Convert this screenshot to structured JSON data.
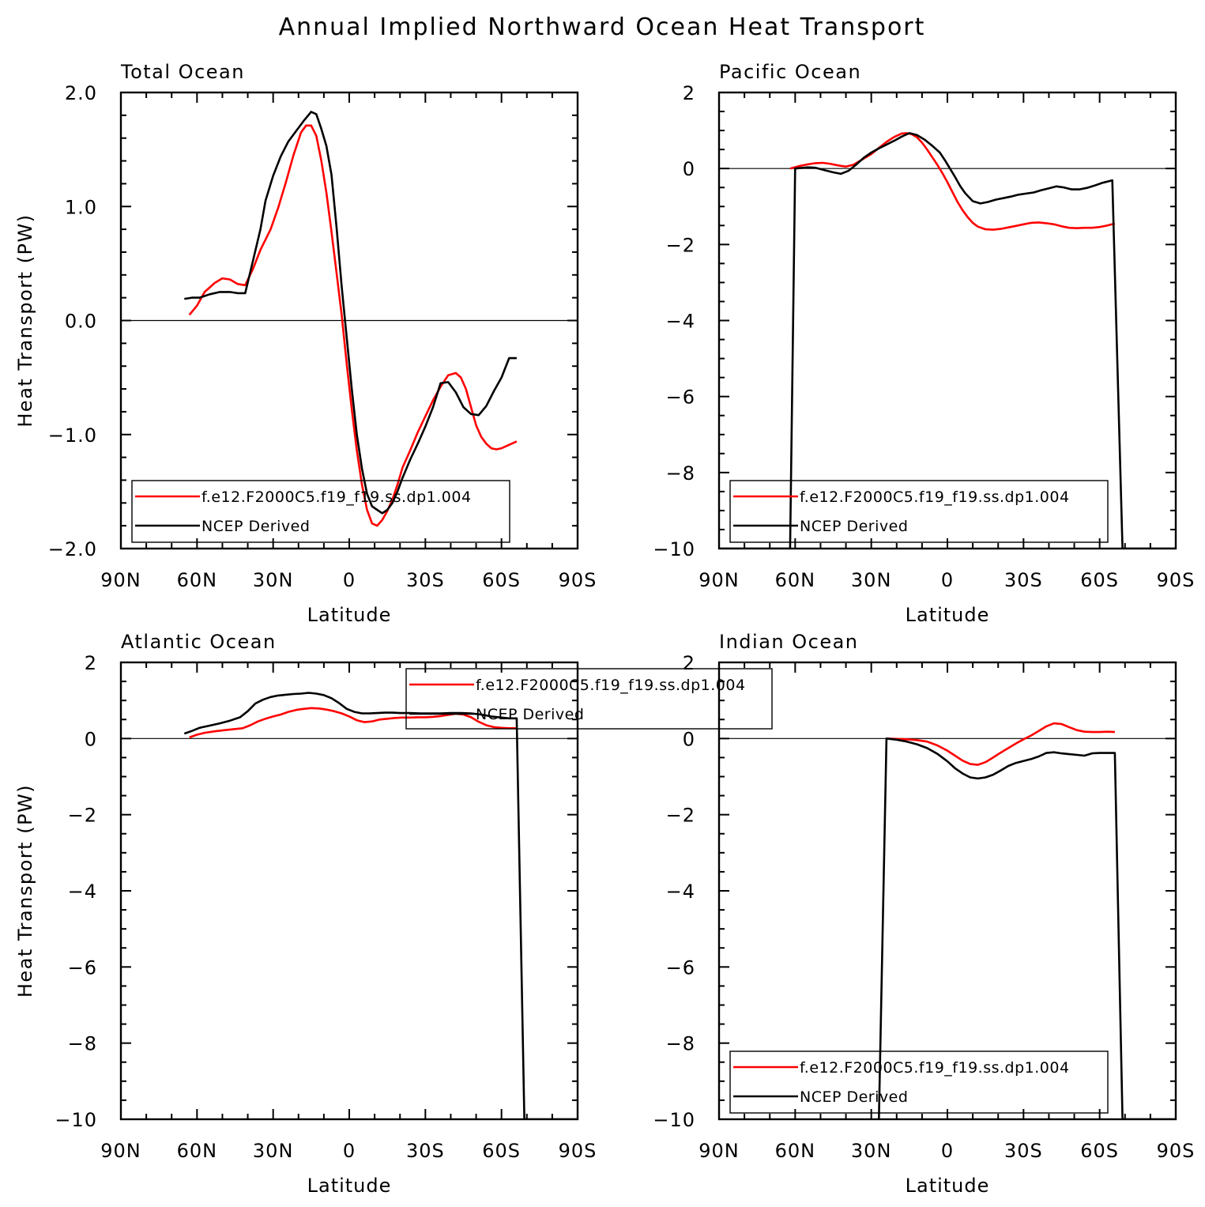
{
  "title": "Annual Implied Northward Ocean Heat Transport",
  "colors": {
    "model": "#ff0000",
    "obs": "#000000",
    "axis": "#000000"
  },
  "chart_data": [
    {
      "type": "line",
      "panel_title": "Total Ocean",
      "xlabel": "Latitude",
      "ylabel": "Heat Transport (PW)",
      "xlim": [
        90,
        -90
      ],
      "ylim": [
        -2,
        2
      ],
      "x_ticks": [
        90,
        60,
        30,
        0,
        -30,
        -60,
        -90
      ],
      "x_tick_labels": [
        "90N",
        "60N",
        "30N",
        "0",
        "30S",
        "60S",
        "90S"
      ],
      "y_ticks": [
        -2,
        -1,
        0,
        1,
        2
      ],
      "y_tick_labels": [
        "−2.0",
        "−1.0",
        "0.0",
        "1.0",
        "2.0"
      ],
      "legend_position": "lower-left",
      "legend_entries": [
        "f.e12.F2000C5.f19_f19.ss.dp1.004",
        "NCEP Derived"
      ],
      "series": [
        {
          "name": "f.e12.F2000C5.f19_f19.ss.dp1.004",
          "color": "#ff0000",
          "x": [
            63,
            60,
            57,
            53,
            50,
            47,
            44,
            41,
            38,
            35,
            31,
            28,
            25,
            22,
            19,
            17,
            15,
            13,
            11,
            9,
            7,
            5,
            3,
            1,
            -1,
            -3,
            -5,
            -7,
            -9,
            -11,
            -13,
            -15,
            -17,
            -19,
            -21,
            -24,
            -27,
            -30,
            -33,
            -36,
            -39,
            -42,
            -44,
            -46,
            -48,
            -50,
            -52,
            -54,
            -56,
            -58,
            -60,
            -62,
            -64,
            -66
          ],
          "y": [
            0.05,
            0.13,
            0.25,
            0.33,
            0.37,
            0.36,
            0.32,
            0.31,
            0.45,
            0.62,
            0.8,
            0.99,
            1.21,
            1.45,
            1.65,
            1.71,
            1.71,
            1.62,
            1.4,
            1.12,
            0.78,
            0.42,
            0.05,
            -0.38,
            -0.78,
            -1.14,
            -1.44,
            -1.66,
            -1.78,
            -1.8,
            -1.75,
            -1.67,
            -1.57,
            -1.44,
            -1.29,
            -1.14,
            -0.98,
            -0.84,
            -0.7,
            -0.58,
            -0.48,
            -0.46,
            -0.5,
            -0.6,
            -0.76,
            -0.92,
            -1.02,
            -1.08,
            -1.12,
            -1.13,
            -1.12,
            -1.1,
            -1.08,
            -1.06
          ]
        },
        {
          "name": "NCEP Derived",
          "color": "#000000",
          "x": [
            65,
            62,
            59,
            55,
            51,
            47,
            44,
            41,
            38,
            35,
            33,
            30,
            27,
            24,
            21,
            18,
            15,
            13,
            11,
            9,
            7,
            5,
            3,
            1,
            -1,
            -3,
            -5,
            -7,
            -9,
            -11,
            -13,
            -15,
            -17,
            -19,
            -21,
            -24,
            -27,
            -30,
            -33,
            -36,
            -39,
            -42,
            -45,
            -48,
            -51,
            -54,
            -57,
            -60,
            -63,
            -66
          ],
          "y": [
            0.19,
            0.2,
            0.2,
            0.23,
            0.25,
            0.25,
            0.24,
            0.24,
            0.52,
            0.8,
            1.05,
            1.27,
            1.44,
            1.57,
            1.66,
            1.75,
            1.83,
            1.81,
            1.68,
            1.53,
            1.28,
            0.82,
            0.3,
            -0.15,
            -0.6,
            -1.0,
            -1.3,
            -1.52,
            -1.63,
            -1.66,
            -1.69,
            -1.66,
            -1.6,
            -1.5,
            -1.38,
            -1.22,
            -1.08,
            -0.93,
            -0.76,
            -0.55,
            -0.54,
            -0.63,
            -0.76,
            -0.82,
            -0.83,
            -0.75,
            -0.62,
            -0.5,
            -0.33,
            -0.33
          ]
        }
      ]
    },
    {
      "type": "line",
      "panel_title": "Pacific Ocean",
      "xlabel": "Latitude",
      "ylabel": "",
      "xlim": [
        90,
        -90
      ],
      "ylim": [
        -10,
        2
      ],
      "x_ticks": [
        90,
        60,
        30,
        0,
        -30,
        -60,
        -90
      ],
      "x_tick_labels": [
        "90N",
        "60N",
        "30N",
        "0",
        "30S",
        "60S",
        "90S"
      ],
      "y_ticks": [
        -10,
        -8,
        -6,
        -4,
        -2,
        0,
        2
      ],
      "y_tick_labels": [
        "−10",
        "−8",
        "−6",
        "−4",
        "−2",
        "0",
        "2"
      ],
      "legend_position": "lower-left",
      "legend_entries": [
        "f.e12.F2000C5.f19_f19.ss.dp1.004",
        "NCEP Derived"
      ],
      "series": [
        {
          "name": "f.e12.F2000C5.f19_f19.ss.dp1.004",
          "color": "#ff0000",
          "x": [
            62,
            58,
            55,
            52,
            49,
            46,
            43,
            40,
            37,
            34,
            30,
            27,
            24,
            21,
            18,
            16,
            14,
            12,
            10,
            8,
            6,
            4,
            2,
            0,
            -2,
            -4,
            -6,
            -8,
            -10,
            -12,
            -15,
            -18,
            -21,
            -24,
            -27,
            -30,
            -33,
            -36,
            -39,
            -42,
            -45,
            -48,
            -51,
            -54,
            -57,
            -60,
            -63,
            -66
          ],
          "y": [
            0.0,
            0.07,
            0.11,
            0.14,
            0.15,
            0.12,
            0.08,
            0.05,
            0.1,
            0.22,
            0.38,
            0.54,
            0.7,
            0.83,
            0.92,
            0.93,
            0.9,
            0.82,
            0.68,
            0.5,
            0.3,
            0.1,
            -0.12,
            -0.36,
            -0.62,
            -0.88,
            -1.1,
            -1.28,
            -1.43,
            -1.53,
            -1.6,
            -1.61,
            -1.59,
            -1.55,
            -1.51,
            -1.47,
            -1.43,
            -1.42,
            -1.44,
            -1.47,
            -1.52,
            -1.56,
            -1.57,
            -1.56,
            -1.56,
            -1.54,
            -1.5,
            -1.45
          ]
        },
        {
          "name": "NCEP Derived",
          "color": "#000000",
          "x": [
            90,
            62,
            60,
            55,
            52,
            48,
            45,
            42,
            39,
            36,
            33,
            30,
            27,
            24,
            21,
            18,
            15,
            12,
            9,
            6,
            3,
            1,
            -1,
            -3,
            -5,
            -7,
            -10,
            -13,
            -16,
            -19,
            -22,
            -25,
            -28,
            -31,
            -34,
            -37,
            -40,
            -43,
            -46,
            -49,
            -52,
            -55,
            -58,
            -61,
            -65,
            -69,
            -90
          ],
          "y": [
            -10.0,
            -10.0,
            0.0,
            0.03,
            0.02,
            -0.05,
            -0.1,
            -0.14,
            -0.06,
            0.1,
            0.28,
            0.42,
            0.53,
            0.63,
            0.73,
            0.84,
            0.93,
            0.88,
            0.76,
            0.6,
            0.42,
            0.22,
            0.0,
            -0.22,
            -0.46,
            -0.65,
            -0.86,
            -0.92,
            -0.88,
            -0.82,
            -0.78,
            -0.74,
            -0.69,
            -0.66,
            -0.63,
            -0.57,
            -0.52,
            -0.47,
            -0.5,
            -0.55,
            -0.55,
            -0.51,
            -0.45,
            -0.38,
            -0.31,
            -10.0,
            -10.0
          ]
        }
      ]
    },
    {
      "type": "line",
      "panel_title": "Atlantic Ocean",
      "xlabel": "Latitude",
      "ylabel": "Heat Transport (PW)",
      "xlim": [
        90,
        -90
      ],
      "ylim": [
        -10,
        2
      ],
      "x_ticks": [
        90,
        60,
        30,
        0,
        -30,
        -60,
        -90
      ],
      "x_tick_labels": [
        "90N",
        "60N",
        "30N",
        "0",
        "30S",
        "60S",
        "90S"
      ],
      "y_ticks": [
        -10,
        -8,
        -6,
        -4,
        -2,
        0,
        2
      ],
      "y_tick_labels": [
        "−10",
        "−8",
        "−6",
        "−4",
        "−2",
        "0",
        "2"
      ],
      "legend_position": "top-center",
      "legend_entries": [
        "f.e12.F2000C5.f19_f19.ss.dp1.004",
        "NCEP Derived"
      ],
      "series": [
        {
          "name": "f.e12.F2000C5.f19_f19.ss.dp1.004",
          "color": "#ff0000",
          "x": [
            63,
            60,
            57,
            53,
            49,
            45,
            42,
            39,
            36,
            33,
            30,
            27,
            24,
            21,
            18,
            15,
            12,
            9,
            6,
            3,
            0,
            -3,
            -6,
            -9,
            -12,
            -15,
            -18,
            -21,
            -24,
            -27,
            -30,
            -33,
            -36,
            -39,
            -42,
            -45,
            -48,
            -51,
            -54,
            -57,
            -60,
            -63,
            -66
          ],
          "y": [
            0.03,
            0.1,
            0.15,
            0.19,
            0.22,
            0.25,
            0.27,
            0.35,
            0.45,
            0.52,
            0.58,
            0.63,
            0.7,
            0.75,
            0.78,
            0.8,
            0.79,
            0.76,
            0.72,
            0.66,
            0.58,
            0.48,
            0.43,
            0.45,
            0.5,
            0.52,
            0.54,
            0.55,
            0.55,
            0.56,
            0.56,
            0.57,
            0.59,
            0.62,
            0.65,
            0.63,
            0.56,
            0.44,
            0.35,
            0.3,
            0.28,
            0.27,
            0.27
          ]
        },
        {
          "name": "NCEP Derived",
          "color": "#000000",
          "x": [
            65,
            62,
            59,
            55,
            51,
            47,
            43,
            40,
            37,
            34,
            31,
            28,
            25,
            22,
            19,
            16,
            13,
            10,
            7,
            4,
            1,
            -2,
            -5,
            -8,
            -11,
            -14,
            -17,
            -20,
            -24,
            -28,
            -32,
            -36,
            -40,
            -44,
            -48,
            -52,
            -56,
            -60,
            -63,
            -66,
            -69,
            -90
          ],
          "y": [
            0.13,
            0.2,
            0.28,
            0.34,
            0.4,
            0.47,
            0.56,
            0.72,
            0.92,
            1.02,
            1.09,
            1.13,
            1.15,
            1.17,
            1.18,
            1.2,
            1.18,
            1.14,
            1.06,
            0.93,
            0.78,
            0.7,
            0.66,
            0.66,
            0.67,
            0.68,
            0.68,
            0.67,
            0.67,
            0.66,
            0.66,
            0.66,
            0.67,
            0.67,
            0.66,
            0.63,
            0.58,
            0.55,
            0.53,
            0.53,
            -10.0,
            -10.0
          ]
        }
      ]
    },
    {
      "type": "line",
      "panel_title": "Indian Ocean",
      "xlabel": "Latitude",
      "ylabel": "",
      "xlim": [
        90,
        -90
      ],
      "ylim": [
        -10,
        2
      ],
      "x_ticks": [
        90,
        60,
        30,
        0,
        -30,
        -60,
        -90
      ],
      "x_tick_labels": [
        "90N",
        "60N",
        "30N",
        "0",
        "30S",
        "60S",
        "90S"
      ],
      "y_ticks": [
        -10,
        -8,
        -6,
        -4,
        -2,
        0,
        2
      ],
      "y_tick_labels": [
        "−10",
        "−8",
        "−6",
        "−4",
        "−2",
        "0",
        "2"
      ],
      "legend_position": "lower-left",
      "legend_entries": [
        "f.e12.F2000C5.f19_f19.ss.dp1.004",
        "NCEP Derived"
      ],
      "series": [
        {
          "name": "f.e12.F2000C5.f19_f19.ss.dp1.004",
          "color": "#ff0000",
          "x": [
            24,
            20,
            16,
            12,
            8,
            4,
            0,
            -3,
            -6,
            -9,
            -12,
            -15,
            -18,
            -21,
            -24,
            -27,
            -30,
            -33,
            -36,
            -39,
            -42,
            -45,
            -48,
            -51,
            -54,
            -57,
            -60,
            -63,
            -66
          ],
          "y": [
            0.0,
            -0.01,
            -0.02,
            -0.04,
            -0.08,
            -0.18,
            -0.32,
            -0.45,
            -0.58,
            -0.67,
            -0.69,
            -0.62,
            -0.5,
            -0.37,
            -0.25,
            -0.13,
            -0.02,
            0.08,
            0.2,
            0.32,
            0.4,
            0.38,
            0.3,
            0.22,
            0.18,
            0.17,
            0.17,
            0.18,
            0.17
          ]
        },
        {
          "name": "NCEP Derived",
          "color": "#000000",
          "x": [
            27,
            24,
            20,
            16,
            12,
            8,
            4,
            0,
            -3,
            -6,
            -9,
            -12,
            -15,
            -18,
            -21,
            -24,
            -27,
            -30,
            -33,
            -36,
            -39,
            -42,
            -45,
            -48,
            -51,
            -54,
            -57,
            -60,
            -63,
            -66,
            -69,
            -90
          ],
          "y": [
            -10.0,
            0.0,
            -0.03,
            -0.08,
            -0.15,
            -0.25,
            -0.4,
            -0.6,
            -0.78,
            -0.92,
            -1.02,
            -1.05,
            -1.02,
            -0.95,
            -0.84,
            -0.72,
            -0.64,
            -0.59,
            -0.54,
            -0.47,
            -0.38,
            -0.36,
            -0.39,
            -0.41,
            -0.43,
            -0.45,
            -0.39,
            -0.38,
            -0.38,
            -0.38,
            -10.0,
            -10.0
          ]
        }
      ]
    }
  ]
}
